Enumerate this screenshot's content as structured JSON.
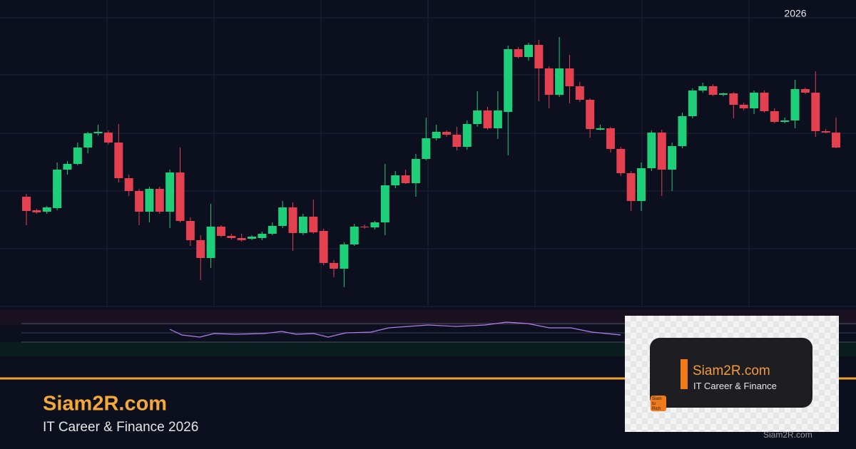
{
  "chart_data": {
    "type": "candlestick",
    "year_label": "2026",
    "up_color": "#1ccf78",
    "down_color": "#e5404f",
    "ylim": [
      0,
      405
    ],
    "open": [
      154,
      135,
      133,
      138,
      192,
      200,
      223,
      243,
      244,
      230,
      180,
      162,
      133,
      165,
      133,
      188,
      120,
      93,
      68,
      112,
      99,
      96,
      95,
      96,
      102,
      113,
      139,
      103,
      126,
      106,
      61,
      53,
      87,
      112,
      111,
      118,
      170,
      184,
      173,
      207,
      236,
      245,
      241,
      224,
      256,
      275,
      250,
      273,
      361,
      350,
      367,
      334,
      297,
      334,
      309,
      290,
      248,
      250,
      221,
      187,
      148,
      194,
      244,
      192,
      225,
      267,
      303,
      309,
      297,
      299,
      283,
      278,
      300,
      274,
      259,
      261,
      305,
      300,
      246,
      244
    ],
    "high": [
      158,
      137,
      141,
      202,
      204,
      230,
      245,
      255,
      247,
      256,
      185,
      165,
      168,
      168,
      192,
      223,
      125,
      100,
      144,
      114,
      102,
      102,
      100,
      105,
      118,
      148,
      146,
      130,
      150,
      109,
      65,
      90,
      116,
      115,
      120,
      200,
      190,
      192,
      214,
      265,
      255,
      247,
      252,
      261,
      302,
      280,
      302,
      366,
      364,
      370,
      374,
      337,
      378,
      353,
      315,
      292,
      255,
      252,
      224,
      190,
      202,
      247,
      248,
      230,
      272,
      306,
      314,
      312,
      300,
      301,
      286,
      303,
      303,
      278,
      265,
      318,
      307,
      330,
      249,
      265
    ],
    "low": [
      114,
      130,
      130,
      135,
      185,
      198,
      215,
      240,
      227,
      174,
      155,
      114,
      118,
      130,
      110,
      118,
      85,
      37,
      54,
      97,
      94,
      91,
      93,
      93,
      100,
      110,
      78,
      100,
      102,
      58,
      41,
      27,
      85,
      109,
      108,
      100,
      166,
      172,
      154,
      205,
      233,
      238,
      219,
      220,
      252,
      248,
      235,
      212,
      348,
      345,
      288,
      278,
      294,
      285,
      287,
      237,
      247,
      216,
      183,
      134,
      134,
      190,
      155,
      162,
      222,
      264,
      300,
      295,
      295,
      264,
      275,
      270,
      272,
      257,
      257,
      250,
      298,
      238,
      243,
      222
    ],
    "close": [
      134,
      132,
      139,
      192,
      200,
      223,
      243,
      245,
      230,
      180,
      162,
      133,
      165,
      133,
      188,
      120,
      93,
      68,
      112,
      99,
      96,
      93,
      98,
      102,
      113,
      139,
      103,
      126,
      104,
      61,
      53,
      87,
      112,
      111,
      118,
      170,
      184,
      173,
      207,
      236,
      245,
      241,
      224,
      256,
      275,
      250,
      275,
      361,
      350,
      367,
      334,
      297,
      334,
      309,
      290,
      249,
      250,
      221,
      187,
      148,
      194,
      244,
      192,
      225,
      267,
      303,
      309,
      297,
      299,
      283,
      278,
      300,
      274,
      259,
      261,
      305,
      300,
      246,
      244,
      223
    ]
  },
  "footer": {
    "brand": "Siam2R.com",
    "tagline": "IT Career & Finance 2026"
  },
  "logo": {
    "brand": "Siam2R.com",
    "tagline": "IT Career & Finance",
    "badge": "Siam to Rich",
    "watermark": "Siam2R.com"
  }
}
